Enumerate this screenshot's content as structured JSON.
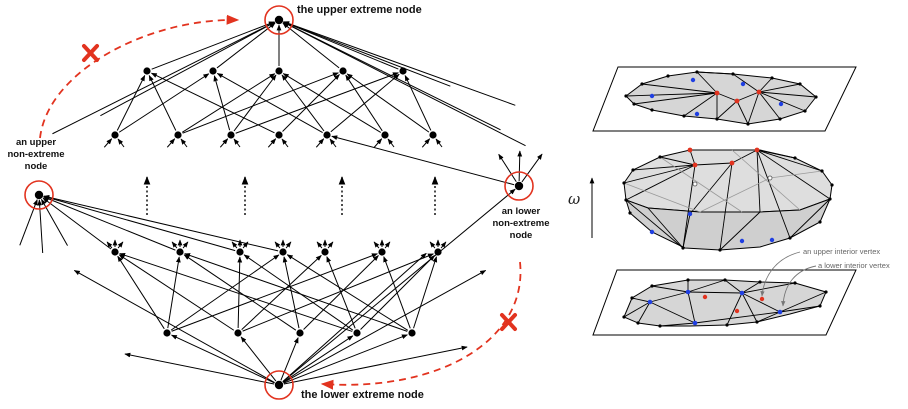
{
  "labels": {
    "upper_extreme": "the upper extreme node",
    "lower_extreme": "the lower extreme node",
    "upper_non_extreme": [
      "an upper",
      "non-extreme",
      "node"
    ],
    "lower_non_extreme": [
      "an lower",
      "non-extreme",
      "node"
    ],
    "upper_interior_vertex": "an upper interior vertex",
    "lower_interior_vertex": "a lower interior vertex",
    "axis_symbol": "ω"
  },
  "colors": {
    "highlight": "#e2331f",
    "node": "#000000",
    "upper_vertex": "#e2331f",
    "lower_vertex": "#1f3fe2",
    "face_fill": "#d6d6d6"
  }
}
